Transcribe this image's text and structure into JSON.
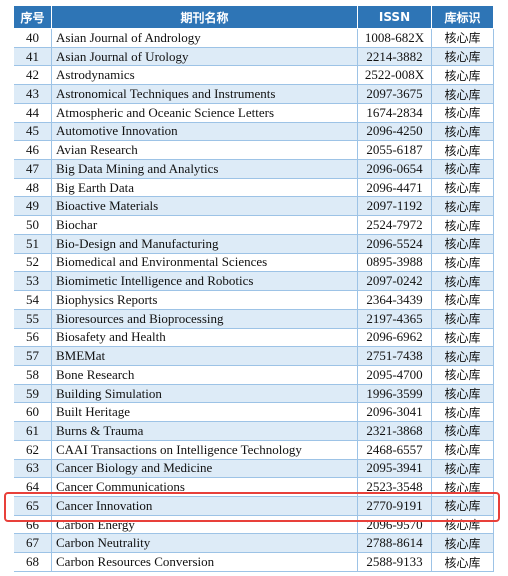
{
  "table": {
    "header": [
      "序号",
      "期刊名称",
      "ISSN",
      "库标识"
    ],
    "rows": [
      [
        40,
        "Asian Journal of Andrology",
        "1008-682X",
        "核心库"
      ],
      [
        41,
        "Asian Journal of Urology",
        "2214-3882",
        "核心库"
      ],
      [
        42,
        "Astrodynamics",
        "2522-008X",
        "核心库"
      ],
      [
        43,
        "Astronomical Techniques and Instruments",
        "2097-3675",
        "核心库"
      ],
      [
        44,
        "Atmospheric and Oceanic Science Letters",
        "1674-2834",
        "核心库"
      ],
      [
        45,
        "Automotive Innovation",
        "2096-4250",
        "核心库"
      ],
      [
        46,
        "Avian Research",
        "2055-6187",
        "核心库"
      ],
      [
        47,
        "Big Data Mining and Analytics",
        "2096-0654",
        "核心库"
      ],
      [
        48,
        "Big Earth Data",
        "2096-4471",
        "核心库"
      ],
      [
        49,
        "Bioactive Materials",
        "2097-1192",
        "核心库"
      ],
      [
        50,
        "Biochar",
        "2524-7972",
        "核心库"
      ],
      [
        51,
        "Bio-Design and Manufacturing",
        "2096-5524",
        "核心库"
      ],
      [
        52,
        "Biomedical and Environmental Sciences",
        "0895-3988",
        "核心库"
      ],
      [
        53,
        "Biomimetic Intelligence and Robotics",
        "2097-0242",
        "核心库"
      ],
      [
        54,
        "Biophysics Reports",
        "2364-3439",
        "核心库"
      ],
      [
        55,
        "Bioresources and Bioprocessing",
        "2197-4365",
        "核心库"
      ],
      [
        56,
        "Biosafety and Health",
        "2096-6962",
        "核心库"
      ],
      [
        57,
        "BMEMat",
        "2751-7438",
        "核心库"
      ],
      [
        58,
        "Bone Research",
        "2095-4700",
        "核心库"
      ],
      [
        59,
        "Building Simulation",
        "1996-3599",
        "核心库"
      ],
      [
        60,
        "Built Heritage",
        "2096-3041",
        "核心库"
      ],
      [
        61,
        "Burns & Trauma",
        "2321-3868",
        "核心库"
      ],
      [
        62,
        "CAAI Transactions on Intelligence Technology",
        "2468-6557",
        "核心库"
      ],
      [
        63,
        "Cancer Biology and Medicine",
        "2095-3941",
        "核心库"
      ],
      [
        64,
        "Cancer Communications",
        "2523-3548",
        "核心库"
      ],
      [
        65,
        "Cancer Innovation",
        "2770-9191",
        "核心库"
      ],
      [
        66,
        "Carbon Energy",
        "2096-9570",
        "核心库"
      ],
      [
        67,
        "Carbon Neutrality",
        "2788-8614",
        "核心库"
      ],
      [
        68,
        "Carbon Resources Conversion",
        "2588-9133",
        "核心库"
      ]
    ]
  }
}
